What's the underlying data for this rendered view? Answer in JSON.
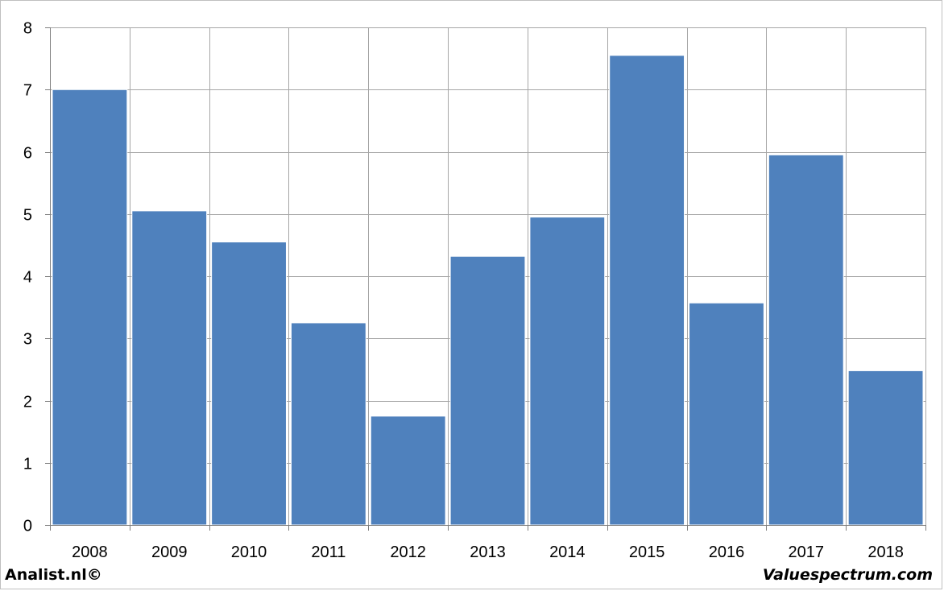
{
  "chart_data": {
    "type": "bar",
    "categories": [
      "2008",
      "2009",
      "2010",
      "2011",
      "2012",
      "2013",
      "2014",
      "2015",
      "2016",
      "2017",
      "2018"
    ],
    "values": [
      7.0,
      5.05,
      4.55,
      3.25,
      1.75,
      4.32,
      4.95,
      7.55,
      3.57,
      5.95,
      2.48
    ],
    "ylim": [
      0,
      8
    ],
    "yticks": [
      0,
      1,
      2,
      3,
      4,
      5,
      6,
      7,
      8
    ],
    "grid": true,
    "legend": "none",
    "title": "",
    "xlabel": "",
    "ylabel": "",
    "colors": {
      "bar": "#4f81bd",
      "grid": "#a6a6a6",
      "axis": "#7f7f7f"
    }
  },
  "footer": {
    "left": "Analist.nl©",
    "right": "Valuespectrum.com"
  }
}
